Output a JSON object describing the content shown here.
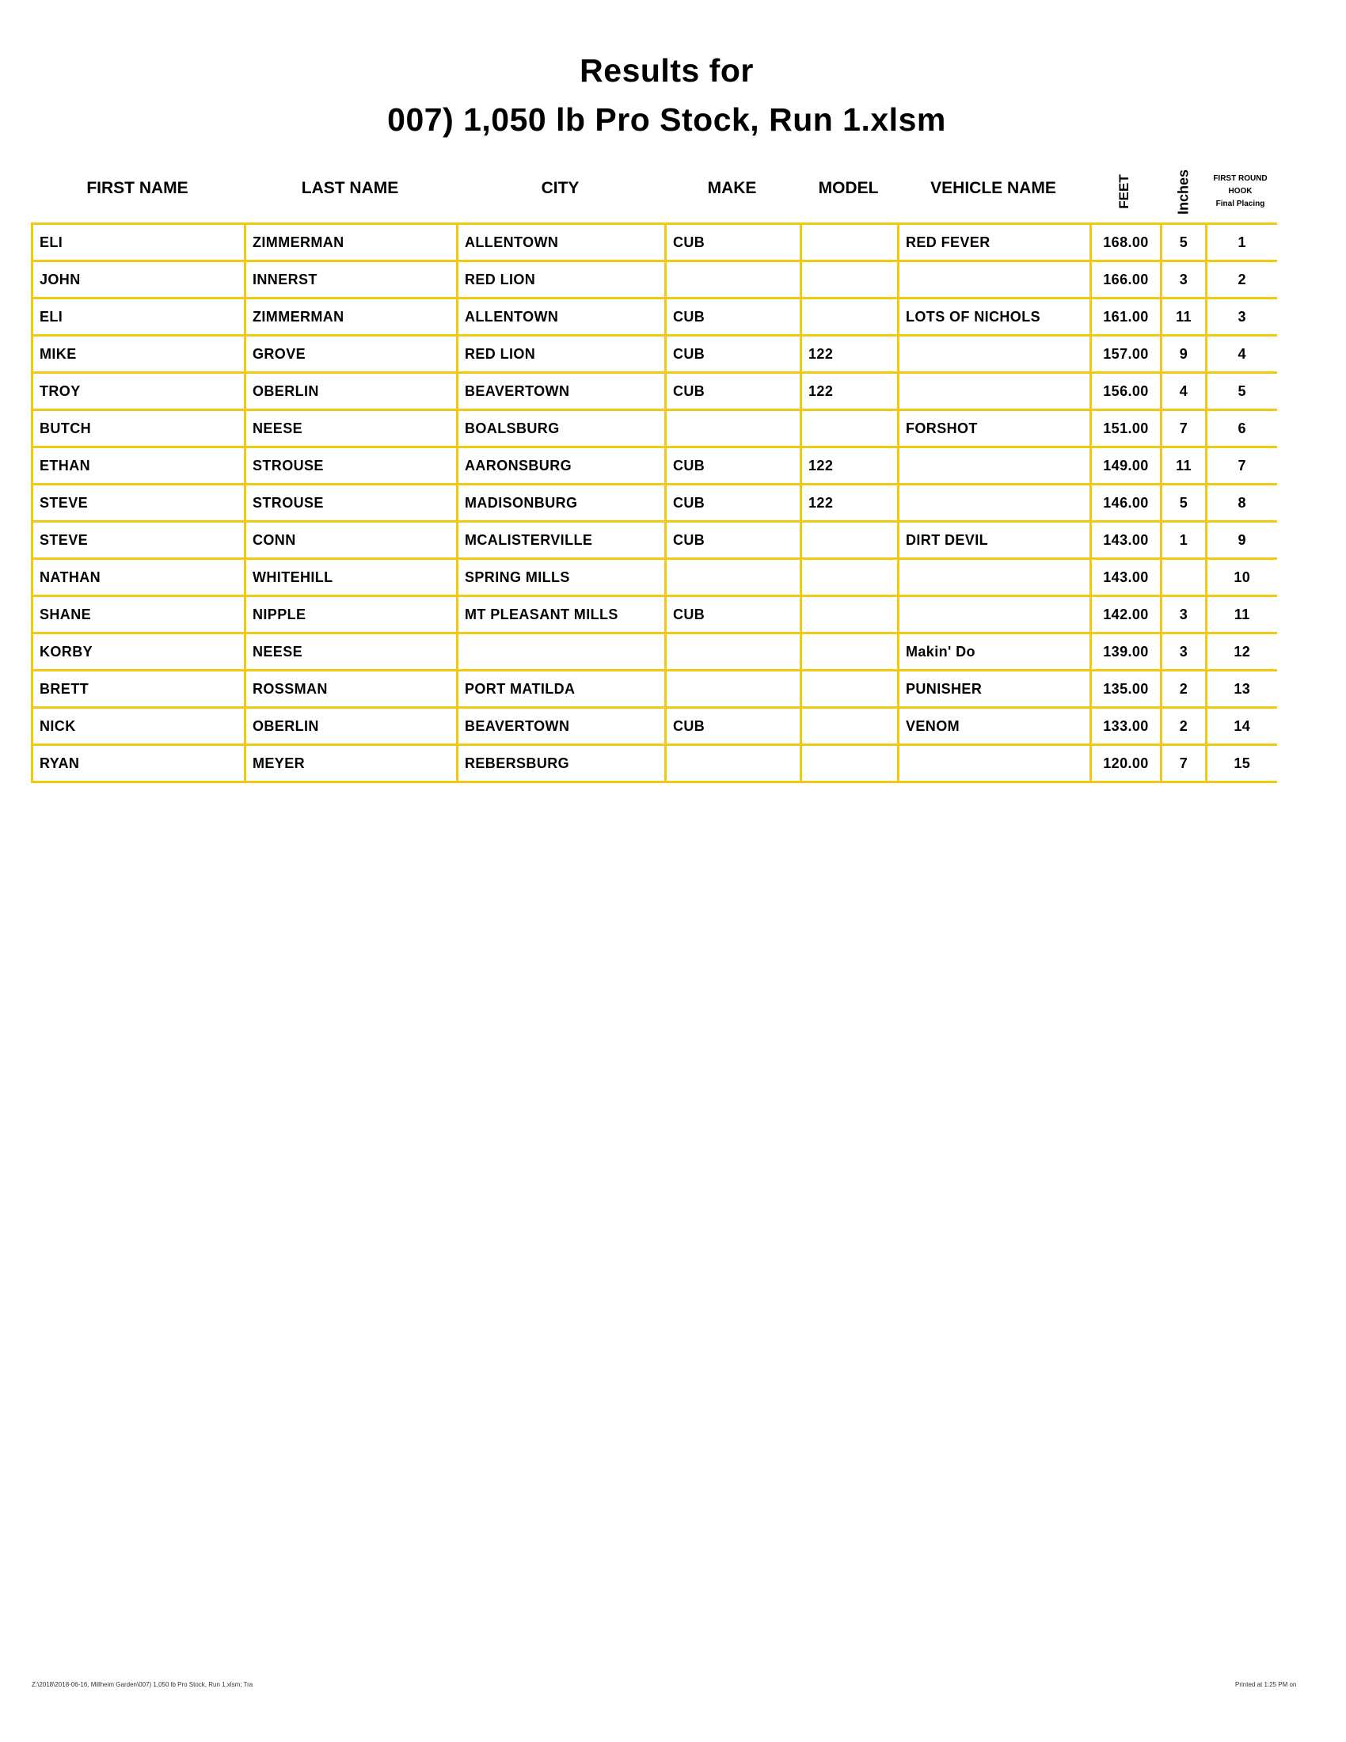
{
  "title_line1": "Results for",
  "title_line2": "007) 1,050 lb Pro Stock, Run 1.xlsm",
  "columns": {
    "first": "FIRST NAME",
    "last": "LAST NAME",
    "city": "CITY",
    "make": "MAKE",
    "model": "MODEL",
    "vehicle": "VEHICLE NAME",
    "feet": "FEET",
    "inches": "Inches",
    "placing_line1": "FIRST ROUND",
    "placing_line2": "HOOK",
    "placing_line3": "Final Placing"
  },
  "rows": [
    [
      "ELI",
      "ZIMMERMAN",
      "ALLENTOWN",
      "CUB",
      "",
      "RED FEVER",
      "168.00",
      "5",
      "1"
    ],
    [
      "JOHN",
      "INNERST",
      "RED LION",
      "",
      "",
      "",
      "166.00",
      "3",
      "2"
    ],
    [
      "ELI",
      "ZIMMERMAN",
      "ALLENTOWN",
      "CUB",
      "",
      "LOTS OF NICHOLS",
      "161.00",
      "11",
      "3"
    ],
    [
      "MIKE",
      "GROVE",
      "RED LION",
      "CUB",
      "122",
      "",
      "157.00",
      "9",
      "4"
    ],
    [
      "TROY",
      "OBERLIN",
      "BEAVERTOWN",
      "CUB",
      "122",
      "",
      "156.00",
      "4",
      "5"
    ],
    [
      "BUTCH",
      "NEESE",
      "BOALSBURG",
      "",
      "",
      "FORSHOT",
      "151.00",
      "7",
      "6"
    ],
    [
      "ETHAN",
      "STROUSE",
      "AARONSBURG",
      "CUB",
      "122",
      "",
      "149.00",
      "11",
      "7"
    ],
    [
      "STEVE",
      "STROUSE",
      "MADISONBURG",
      "CUB",
      "122",
      "",
      "146.00",
      "5",
      "8"
    ],
    [
      "STEVE",
      "CONN",
      "MCALISTERVILLE",
      "CUB",
      "",
      "DIRT DEVIL",
      "143.00",
      "1",
      "9"
    ],
    [
      "NATHAN",
      "WHITEHILL",
      "SPRING MILLS",
      "",
      "",
      "",
      "143.00",
      "",
      "10"
    ],
    [
      "SHANE",
      "NIPPLE",
      "MT PLEASANT MILLS",
      "CUB",
      "",
      "",
      "142.00",
      "3",
      "11"
    ],
    [
      "KORBY",
      "NEESE",
      "",
      "",
      "",
      "Makin' Do",
      "139.00",
      "3",
      "12"
    ],
    [
      "BRETT",
      "ROSSMAN",
      "PORT MATILDA",
      "",
      "",
      "PUNISHER",
      "135.00",
      "2",
      "13"
    ],
    [
      "NICK",
      "OBERLIN",
      "BEAVERTOWN",
      "CUB",
      "",
      "VENOM",
      "133.00",
      "2",
      "14"
    ],
    [
      "RYAN",
      "MEYER",
      "REBERSBURG",
      "",
      "",
      "",
      "120.00",
      "7",
      "15"
    ]
  ],
  "footer_left": "Z:\\2018\\2018-06-16, Millheim Garden\\007) 1,050 lb Pro Stock, Run 1.xlsm; Tra",
  "footer_right": "Printed at 1:25 PM on",
  "colors": {
    "grid": "#F2C811"
  }
}
